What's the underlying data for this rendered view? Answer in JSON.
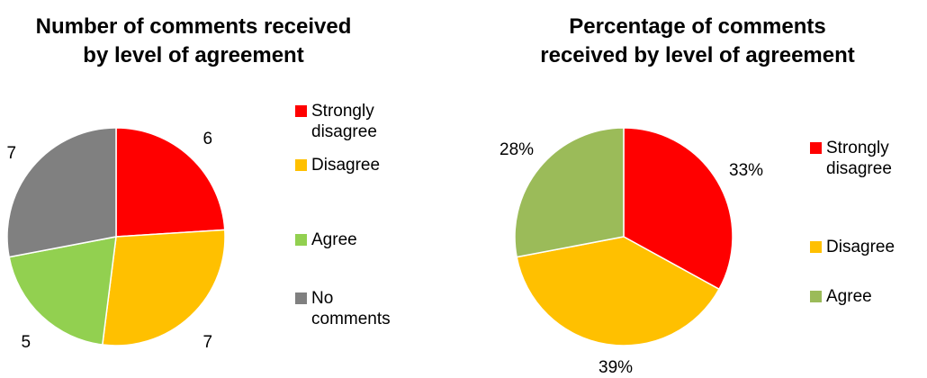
{
  "chart_data": [
    {
      "type": "pie",
      "title": [
        "Number of comments received",
        "by level of agreement"
      ],
      "categories": [
        "Strongly disagree",
        "Disagree",
        "Agree",
        "No comments"
      ],
      "values": [
        6,
        7,
        5,
        7
      ],
      "data_labels": [
        "6",
        "7",
        "5",
        "7"
      ],
      "colors": [
        "#ff0000",
        "#ffc000",
        "#92d050",
        "#808080"
      ],
      "legend": {
        "position": "right",
        "entries": [
          [
            "Strongly",
            "disagree"
          ],
          [
            "Disagree"
          ],
          [
            "Agree"
          ],
          [
            "No",
            "comments"
          ]
        ]
      }
    },
    {
      "type": "pie",
      "title": [
        "Percentage of comments",
        "received by level of agreement"
      ],
      "categories": [
        "Strongly disagree",
        "Disagree",
        "Agree"
      ],
      "values": [
        33,
        39,
        28
      ],
      "data_labels": [
        "33%",
        "39%",
        "28%"
      ],
      "colors": [
        "#ff0000",
        "#ffc000",
        "#9bbb59"
      ],
      "legend": {
        "position": "right",
        "entries": [
          [
            "Strongly",
            "disagree"
          ],
          [
            "Disagree"
          ],
          [
            "Agree"
          ]
        ]
      }
    }
  ]
}
